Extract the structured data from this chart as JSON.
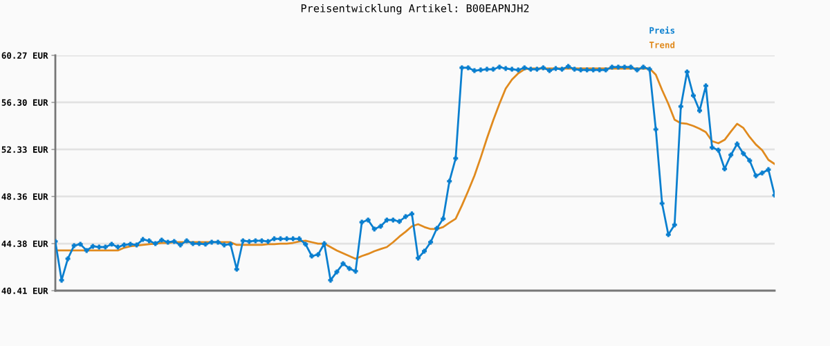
{
  "chart_data": {
    "type": "line",
    "title": "Preisentwicklung Artikel: B00EAPNJH2",
    "categories": [
      null,
      null,
      null,
      null,
      null,
      null,
      null,
      null,
      null,
      null,
      null,
      null,
      null,
      null,
      null,
      null,
      null,
      null,
      null,
      null,
      null,
      null,
      null,
      null,
      null,
      null,
      null,
      null,
      null,
      null,
      null,
      null,
      null,
      null,
      null,
      null,
      null,
      null,
      null,
      null,
      null,
      null,
      null,
      null,
      null,
      null,
      null,
      null,
      null,
      null,
      null,
      null,
      null,
      null,
      null,
      null,
      null,
      null,
      null,
      null,
      null,
      null,
      null,
      null,
      null,
      null,
      null,
      null,
      null,
      null,
      null,
      null,
      null,
      null,
      null,
      null,
      null,
      null,
      null,
      null,
      null,
      null,
      null,
      null,
      null,
      null,
      null,
      null,
      null,
      null,
      null,
      null,
      null,
      null,
      null,
      null,
      null,
      null,
      null,
      null,
      null,
      null,
      null,
      null,
      null,
      null,
      null,
      null,
      null,
      null,
      null,
      null,
      null,
      null,
      null,
      null
    ],
    "series": [
      {
        "name": "Preis",
        "color": "#0a7fcf",
        "marker": "cross",
        "values": [
          44.56,
          41.29,
          43.1,
          44.21,
          44.33,
          43.8,
          44.15,
          44.09,
          44.09,
          44.33,
          44.09,
          44.27,
          44.33,
          44.27,
          44.73,
          44.62,
          44.38,
          44.68,
          44.5,
          44.56,
          44.27,
          44.62,
          44.38,
          44.38,
          44.33,
          44.5,
          44.5,
          44.27,
          44.33,
          42.22,
          44.62,
          44.56,
          44.62,
          44.62,
          44.56,
          44.79,
          44.79,
          44.79,
          44.79,
          44.79,
          44.33,
          43.33,
          43.45,
          44.38,
          41.29,
          41.99,
          42.69,
          42.28,
          42.05,
          46.19,
          46.37,
          45.61,
          45.84,
          46.37,
          46.37,
          46.25,
          46.66,
          46.89,
          43.16,
          43.74,
          44.5,
          45.67,
          46.48,
          49.64,
          51.57,
          59.22,
          59.22,
          58.98,
          59.04,
          59.1,
          59.1,
          59.28,
          59.16,
          59.1,
          59.04,
          59.22,
          59.1,
          59.1,
          59.22,
          58.98,
          59.16,
          59.1,
          59.34,
          59.1,
          59.04,
          59.04,
          59.04,
          59.04,
          59.04,
          59.28,
          59.28,
          59.28,
          59.28,
          59.04,
          59.28,
          59.1,
          54.02,
          47.77,
          45.14,
          45.96,
          55.95,
          58.87,
          56.88,
          55.6,
          57.7,
          52.5,
          52.27,
          50.69,
          51.86,
          52.79,
          51.98,
          51.39,
          50.11,
          50.34,
          50.63,
          48.47
        ]
      },
      {
        "name": "Trend",
        "color": "#e08a1e",
        "marker": "none",
        "values": [
          43.8,
          43.8,
          43.8,
          43.8,
          43.8,
          43.8,
          43.8,
          43.8,
          43.8,
          43.8,
          43.8,
          44.03,
          44.15,
          44.21,
          44.27,
          44.33,
          44.38,
          44.44,
          44.44,
          44.5,
          44.5,
          44.5,
          44.5,
          44.5,
          44.5,
          44.5,
          44.5,
          44.5,
          44.5,
          44.27,
          44.27,
          44.27,
          44.27,
          44.27,
          44.33,
          44.33,
          44.38,
          44.38,
          44.44,
          44.56,
          44.62,
          44.5,
          44.38,
          44.38,
          44.09,
          43.8,
          43.56,
          43.33,
          43.1,
          43.33,
          43.51,
          43.74,
          43.92,
          44.09,
          44.5,
          44.97,
          45.38,
          45.84,
          46.02,
          45.78,
          45.61,
          45.61,
          45.78,
          46.14,
          46.48,
          47.6,
          48.82,
          50.11,
          51.63,
          53.26,
          54.78,
          56.18,
          57.47,
          58.23,
          58.75,
          59.1,
          59.16,
          59.16,
          59.16,
          59.16,
          59.16,
          59.16,
          59.16,
          59.16,
          59.16,
          59.16,
          59.16,
          59.16,
          59.16,
          59.16,
          59.16,
          59.16,
          59.16,
          59.16,
          59.16,
          59.16,
          58.63,
          57.35,
          56.18,
          54.84,
          54.55,
          54.49,
          54.31,
          54.08,
          53.79,
          53.03,
          52.85,
          53.14,
          53.84,
          54.49,
          54.14,
          53.38,
          52.74,
          52.27,
          51.45,
          51.1
        ]
      }
    ],
    "ylim": [
      40.41,
      60.27
    ],
    "yticks": [
      {
        "value": 40.41,
        "label": "40.41 EUR"
      },
      {
        "value": 44.38,
        "label": "44.38 EUR"
      },
      {
        "value": 48.36,
        "label": "48.36 EUR"
      },
      {
        "value": 52.33,
        "label": "52.33 EUR"
      },
      {
        "value": 56.3,
        "label": "56.30 EUR"
      },
      {
        "value": 60.27,
        "label": "60.27 EUR"
      }
    ],
    "grid": "y",
    "legend": "top right",
    "tick_labels": "y"
  }
}
